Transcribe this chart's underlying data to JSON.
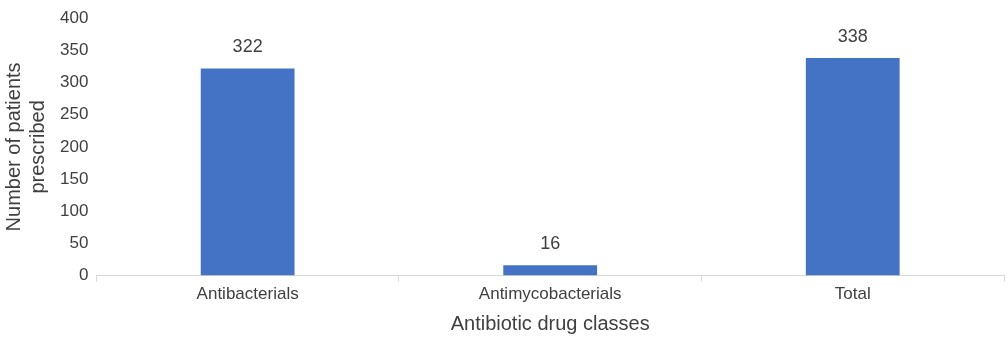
{
  "chart_data": {
    "type": "bar",
    "xlabel": "Antibiotic drug classes",
    "ylabel": "Number of patients prescribed",
    "categories": [
      "Antibacterials",
      "Antimycobacterials",
      "Total"
    ],
    "values": [
      322,
      16,
      338
    ],
    "color": "#4472c4",
    "ylim": [
      0,
      400
    ],
    "yticks": [
      0,
      50,
      100,
      150,
      200,
      250,
      300,
      350,
      400
    ],
    "grid": false,
    "data_labels": true
  }
}
